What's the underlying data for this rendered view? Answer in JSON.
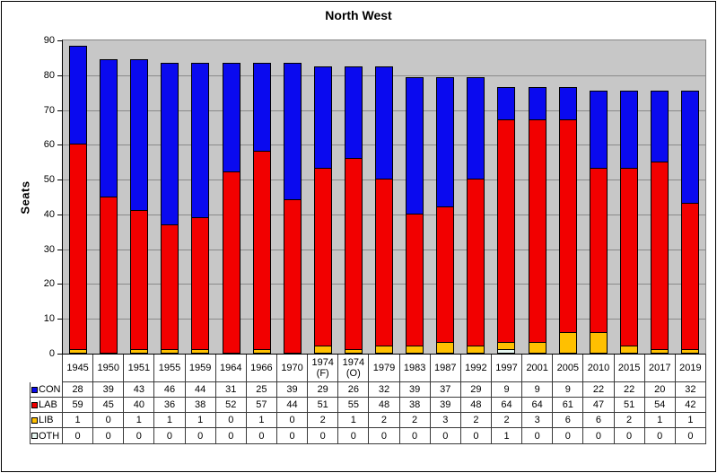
{
  "chart_data": {
    "type": "bar",
    "stacked": true,
    "title": "North West",
    "ylabel": "Seats",
    "ylim": [
      0,
      90
    ],
    "ytick_step": 10,
    "grid": true,
    "plot_background": "#C7C7C7",
    "gridline_color": "#8A8A8A",
    "axis_color": "#000000",
    "legend_position": "data-table-left",
    "stack_order_bottom_to_top": [
      "OTH",
      "LIB",
      "LAB",
      "CON"
    ],
    "categories": [
      "1945",
      "1950",
      "1951",
      "1955",
      "1959",
      "1964",
      "1966",
      "1970",
      "1974 (F)",
      "1974 (O)",
      "1979",
      "1983",
      "1987",
      "1992",
      "1997",
      "2001",
      "2005",
      "2010",
      "2015",
      "2017",
      "2019"
    ],
    "series": [
      {
        "name": "CON",
        "color": "#0A0AEF",
        "values": [
          28,
          39,
          43,
          46,
          44,
          31,
          25,
          39,
          29,
          26,
          32,
          39,
          37,
          29,
          9,
          9,
          9,
          22,
          22,
          20,
          32
        ]
      },
      {
        "name": "LAB",
        "color": "#F20000",
        "values": [
          59,
          45,
          40,
          36,
          38,
          52,
          57,
          44,
          51,
          55,
          48,
          38,
          39,
          48,
          64,
          64,
          61,
          47,
          51,
          54,
          42
        ]
      },
      {
        "name": "LIB",
        "color": "#FFC000",
        "values": [
          1,
          0,
          1,
          1,
          1,
          0,
          1,
          0,
          2,
          1,
          2,
          2,
          3,
          2,
          2,
          3,
          6,
          6,
          2,
          1,
          1
        ]
      },
      {
        "name": "OTH",
        "color": "#E6F6F0",
        "values": [
          0,
          0,
          0,
          0,
          0,
          0,
          0,
          0,
          0,
          0,
          0,
          0,
          0,
          0,
          1,
          0,
          0,
          0,
          0,
          0,
          0
        ]
      }
    ]
  }
}
